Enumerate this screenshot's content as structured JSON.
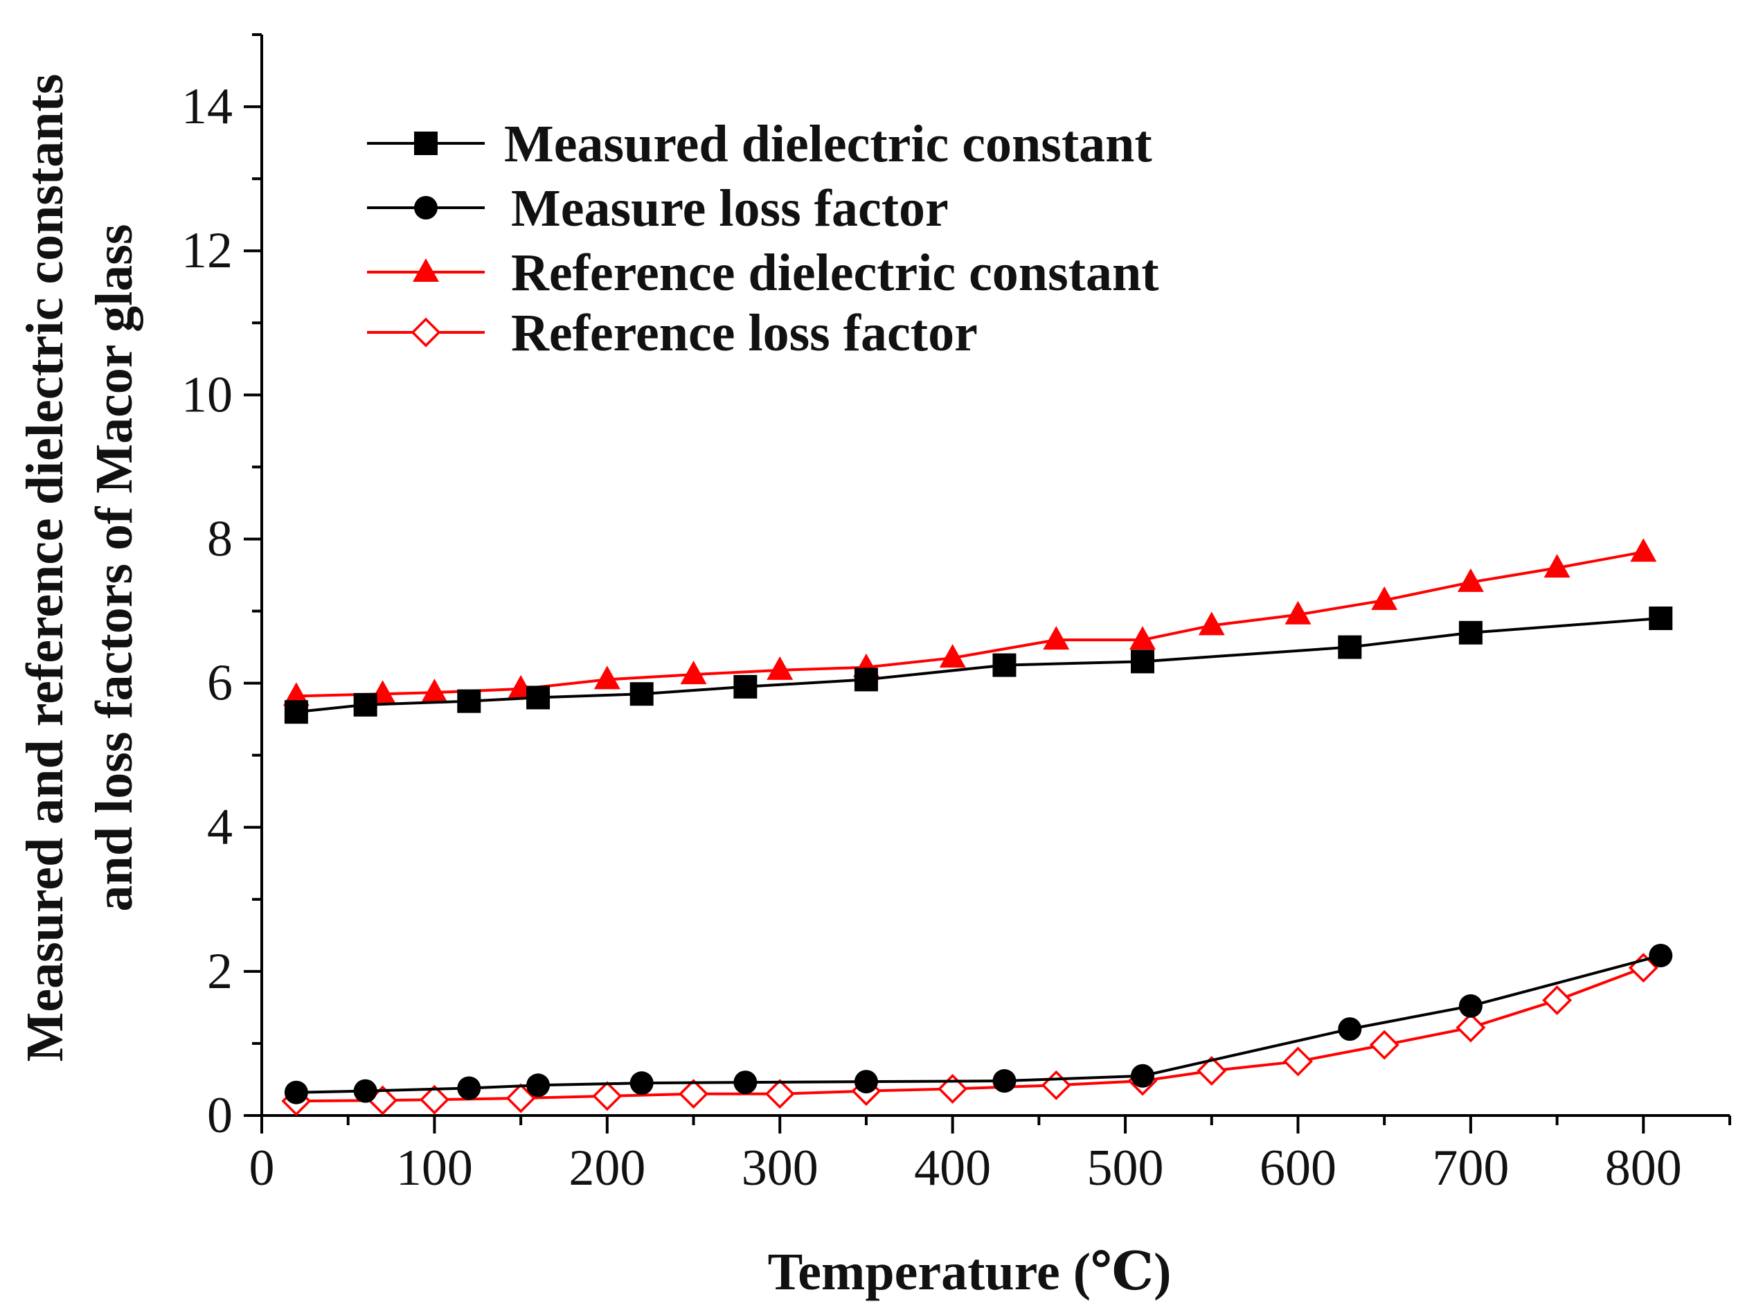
{
  "chart_data": {
    "type": "line",
    "xlabel": "Temperature (℃)",
    "ylabel_lines": [
      "Measured and reference dielectric constants",
      "and loss factors of Macor glass"
    ],
    "xlim": [
      0,
      850
    ],
    "ylim": [
      0,
      15
    ],
    "xticks": [
      0,
      100,
      200,
      300,
      400,
      500,
      600,
      700,
      800
    ],
    "yticks": [
      0,
      2,
      4,
      6,
      8,
      10,
      12,
      14
    ],
    "legend_position": "top-left",
    "series": [
      {
        "name": "Measured dielectric constant",
        "color": "#000000",
        "marker": "square",
        "x": [
          20,
          60,
          120,
          160,
          220,
          280,
          350,
          430,
          510,
          630,
          700,
          810
        ],
        "y": [
          5.6,
          5.7,
          5.75,
          5.8,
          5.85,
          5.95,
          6.05,
          6.25,
          6.3,
          6.5,
          6.7,
          6.9
        ]
      },
      {
        "name": "Measure loss factor",
        "color": "#000000",
        "marker": "circle",
        "x": [
          20,
          60,
          120,
          160,
          220,
          280,
          350,
          430,
          510,
          630,
          700,
          810
        ],
        "y": [
          0.32,
          0.34,
          0.38,
          0.42,
          0.45,
          0.46,
          0.47,
          0.48,
          0.55,
          1.2,
          1.52,
          2.22
        ]
      },
      {
        "name": "Reference dielectric constant",
        "color": "#ff0000",
        "marker": "triangle",
        "x": [
          20,
          70,
          100,
          150,
          200,
          250,
          300,
          350,
          400,
          460,
          510,
          550,
          600,
          650,
          700,
          750,
          800
        ],
        "y": [
          5.82,
          5.85,
          5.87,
          5.92,
          6.05,
          6.12,
          6.18,
          6.22,
          6.35,
          6.6,
          6.6,
          6.8,
          6.95,
          7.15,
          7.4,
          7.6,
          7.82
        ]
      },
      {
        "name": "Reference loss factor",
        "color": "#ff0000",
        "marker": "open-diamond",
        "x": [
          20,
          70,
          100,
          150,
          200,
          250,
          300,
          350,
          400,
          460,
          510,
          550,
          600,
          650,
          700,
          750,
          800
        ],
        "y": [
          0.2,
          0.21,
          0.22,
          0.24,
          0.27,
          0.3,
          0.3,
          0.34,
          0.37,
          0.42,
          0.48,
          0.62,
          0.75,
          0.98,
          1.22,
          1.6,
          2.05
        ]
      }
    ]
  }
}
